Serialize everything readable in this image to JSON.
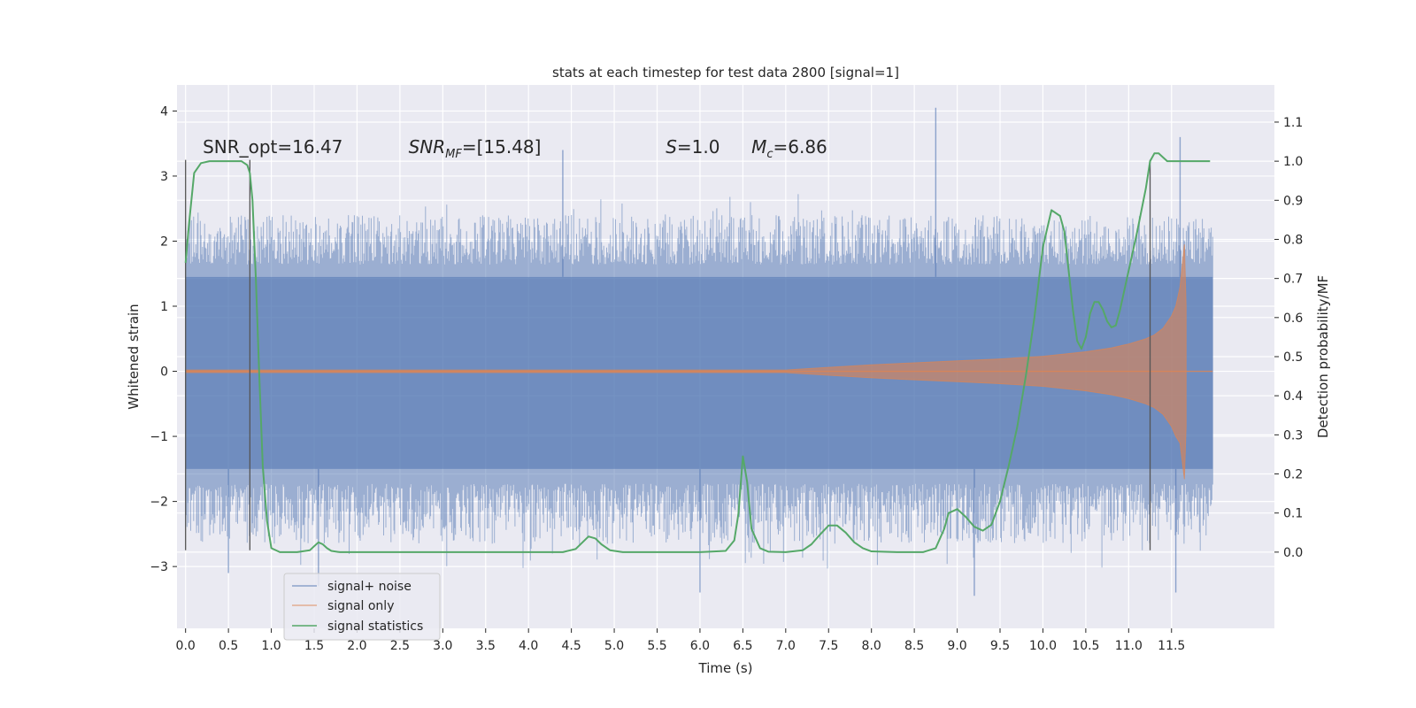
{
  "chart_data": {
    "type": "line",
    "title": "stats at each timestep for test data 2800 [signal=1]",
    "xlabel": "Time (s)",
    "ylabel": "Whitened strain",
    "y2label": "Detection probability/MF",
    "xlim": [
      -0.1,
      12.7
    ],
    "ylim": [
      -3.95,
      4.4
    ],
    "y2lim": [
      -0.195,
      1.195
    ],
    "x_ticks": [
      0.0,
      0.5,
      1.0,
      1.5,
      2.0,
      2.5,
      3.0,
      3.5,
      4.0,
      4.5,
      5.0,
      5.5,
      6.0,
      6.5,
      7.0,
      7.5,
      8.0,
      8.5,
      9.0,
      9.5,
      10.0,
      10.5,
      11.0,
      11.5
    ],
    "y_ticks": [
      -3,
      -2,
      -1,
      0,
      1,
      2,
      3,
      4
    ],
    "y2_ticks": [
      0.0,
      0.1,
      0.2,
      0.3,
      0.4,
      0.5,
      0.6,
      0.7,
      0.8,
      0.9,
      1.0,
      1.1
    ],
    "grid": true,
    "legend_position": "lower-left",
    "annotations": [
      {
        "text": "SNR_opt=16.47",
        "x": 0.2,
        "y": 3.35
      },
      {
        "text": "SNR",
        "sub": "MF",
        "suffix": "=[15.48]",
        "italic": true,
        "x": 2.6,
        "y": 3.35
      },
      {
        "text": "S",
        "suffix": "=1.0",
        "italic": true,
        "x": 5.6,
        "y": 3.35
      },
      {
        "text": "M",
        "sub": "c",
        "suffix": "=6.86",
        "italic": true,
        "x": 6.6,
        "y": 3.35
      }
    ],
    "markers": [
      {
        "x": 0.0,
        "ymin": -2.75,
        "ymax": 3.25
      },
      {
        "x": 0.75,
        "ymin": -2.75,
        "ymax": 3.25
      },
      {
        "x": 11.25,
        "ymin": -2.75,
        "ymax": 3.25
      }
    ],
    "series": [
      {
        "name": "signal+ noise",
        "color": "#4c72b0",
        "axis": "left",
        "t_range": [
          0.0,
          11.98
        ],
        "core_band": [
          -1.5,
          1.45
        ],
        "typical_peak": 2.4,
        "notable_peaks": [
          {
            "x": 8.75,
            "y": 4.05
          },
          {
            "x": 11.6,
            "y": 3.6
          },
          {
            "x": 11.55,
            "y": -3.4
          },
          {
            "x": 6.0,
            "y": -3.4
          },
          {
            "x": 9.2,
            "y": -3.45
          },
          {
            "x": 1.55,
            "y": -3.3
          },
          {
            "x": 0.5,
            "y": -3.1
          },
          {
            "x": 4.4,
            "y": 3.4
          }
        ]
      },
      {
        "name": "signal only",
        "color": "#dd8452",
        "axis": "left",
        "t_range": [
          0.0,
          11.98
        ],
        "envelope": {
          "x": [
            0.0,
            7.0,
            7.5,
            8.0,
            8.5,
            9.0,
            9.5,
            10.0,
            10.5,
            10.8,
            11.0,
            11.2,
            11.3,
            11.4,
            11.5,
            11.55,
            11.6,
            11.65,
            11.67
          ],
          "y": [
            0.02,
            0.02,
            0.06,
            0.1,
            0.13,
            0.16,
            0.19,
            0.23,
            0.3,
            0.36,
            0.42,
            0.5,
            0.56,
            0.66,
            0.85,
            1.0,
            1.3,
            1.95,
            1.0
          ]
        },
        "merger": 11.67
      },
      {
        "name": "signal statistics",
        "color": "#55a868",
        "axis": "right",
        "x": [
          0.0,
          0.04,
          0.1,
          0.18,
          0.28,
          0.4,
          0.55,
          0.65,
          0.72,
          0.75,
          0.78,
          0.82,
          0.86,
          0.9,
          0.95,
          1.0,
          1.1,
          1.3,
          1.45,
          1.5,
          1.55,
          1.6,
          1.65,
          1.7,
          1.8,
          2.0,
          2.5,
          3.0,
          3.5,
          4.0,
          4.4,
          4.55,
          4.63,
          4.7,
          4.78,
          4.85,
          4.95,
          5.1,
          5.5,
          6.0,
          6.3,
          6.4,
          6.45,
          6.5,
          6.55,
          6.6,
          6.7,
          6.8,
          7.0,
          7.2,
          7.3,
          7.4,
          7.5,
          7.6,
          7.7,
          7.8,
          7.9,
          8.0,
          8.3,
          8.6,
          8.75,
          8.85,
          8.9,
          9.0,
          9.1,
          9.2,
          9.3,
          9.4,
          9.5,
          9.6,
          9.7,
          9.8,
          9.9,
          10.0,
          10.1,
          10.2,
          10.25,
          10.3,
          10.35,
          10.4,
          10.45,
          10.5,
          10.55,
          10.6,
          10.65,
          10.7,
          10.75,
          10.8,
          10.85,
          10.9,
          11.0,
          11.1,
          11.2,
          11.25,
          11.3,
          11.35,
          11.4,
          11.45,
          11.55,
          11.7,
          11.85,
          11.95
        ],
        "values": [
          0.74,
          0.84,
          0.97,
          0.995,
          1.0,
          1.0,
          1.0,
          1.0,
          0.99,
          0.97,
          0.9,
          0.7,
          0.45,
          0.22,
          0.08,
          0.01,
          0.0,
          0.0,
          0.005,
          0.015,
          0.025,
          0.02,
          0.01,
          0.003,
          0.0,
          0.0,
          0.0,
          0.0,
          0.0,
          0.0,
          0.0,
          0.008,
          0.025,
          0.04,
          0.035,
          0.02,
          0.005,
          0.0,
          0.0,
          0.0,
          0.003,
          0.03,
          0.1,
          0.245,
          0.18,
          0.06,
          0.01,
          0.001,
          0.0,
          0.005,
          0.02,
          0.045,
          0.068,
          0.068,
          0.05,
          0.025,
          0.01,
          0.002,
          0.0,
          0.0,
          0.01,
          0.06,
          0.1,
          0.11,
          0.09,
          0.065,
          0.055,
          0.07,
          0.13,
          0.22,
          0.32,
          0.45,
          0.6,
          0.78,
          0.875,
          0.86,
          0.82,
          0.72,
          0.62,
          0.54,
          0.52,
          0.55,
          0.61,
          0.64,
          0.64,
          0.62,
          0.59,
          0.575,
          0.58,
          0.62,
          0.72,
          0.82,
          0.93,
          1.0,
          1.02,
          1.02,
          1.01,
          1.0,
          1.0,
          1.0,
          1.0,
          1.0
        ]
      }
    ]
  }
}
